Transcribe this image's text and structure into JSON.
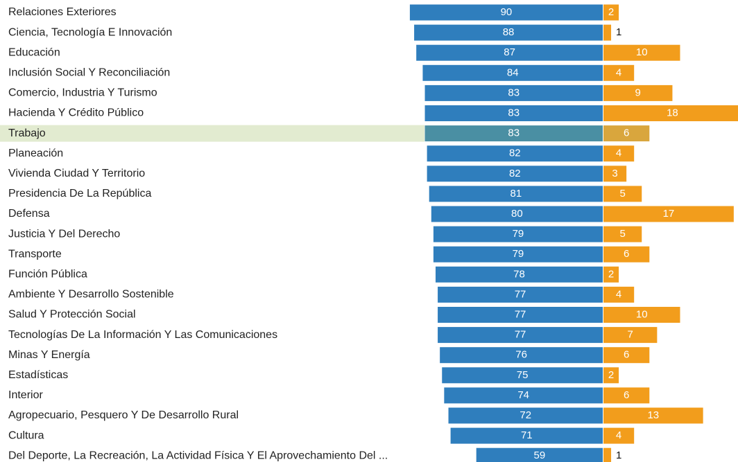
{
  "chart_data": {
    "type": "diverging_bar",
    "categories": [
      "Relaciones Exteriores",
      "Ciencia, Tecnología E Innovación",
      "Educación",
      "Inclusión Social Y Reconciliación",
      "Comercio, Industria Y Turismo",
      "Hacienda Y Crédito Público",
      "Trabajo",
      "Planeación",
      "Vivienda Ciudad Y Territorio",
      "Presidencia De La República",
      "Defensa",
      "Justicia Y Del Derecho",
      "Transporte",
      "Función Pública",
      "Ambiente Y Desarrollo Sostenible",
      "Salud Y Protección Social",
      "Tecnologías De La Información Y Las Comunicaciones",
      "Minas Y Energía",
      "Estadísticas",
      "Interior",
      "Agropecuario, Pesquero Y De Desarrollo Rural",
      "Cultura",
      "Del Deporte, La Recreación, La Actividad Física Y El Aprovechamiento Del ..."
    ],
    "series": [
      {
        "color": "#2f7ebd",
        "values": [
          90,
          88,
          87,
          84,
          83,
          83,
          83,
          82,
          82,
          81,
          80,
          79,
          79,
          78,
          77,
          77,
          77,
          76,
          75,
          74,
          72,
          71,
          59
        ]
      },
      {
        "color": "#f29d1c",
        "values": [
          2,
          1,
          10,
          4,
          9,
          18,
          6,
          4,
          3,
          5,
          17,
          5,
          6,
          2,
          4,
          10,
          7,
          6,
          2,
          6,
          13,
          4,
          1
        ]
      }
    ],
    "highlight": "Trabajo"
  }
}
